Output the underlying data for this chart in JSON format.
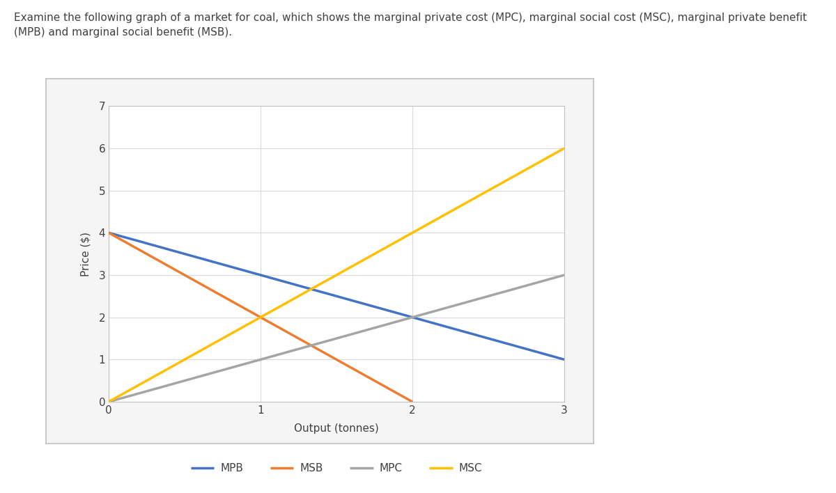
{
  "title_text": "Examine the following graph of a market for coal, which shows the marginal private cost (MPC), marginal social cost (MSC), marginal private benefit\n(MPB) and marginal social benefit (MSB).",
  "xlabel": "Output (tonnes)",
  "ylabel": "Price ($)",
  "xlim": [
    0,
    3
  ],
  "ylim": [
    0,
    7
  ],
  "xticks": [
    0,
    1,
    2,
    3
  ],
  "yticks": [
    0,
    1,
    2,
    3,
    4,
    5,
    6,
    7
  ],
  "lines": {
    "MPB": {
      "x": [
        0,
        3
      ],
      "y": [
        4,
        1
      ],
      "color": "#4472C4",
      "linewidth": 2.5
    },
    "MSB": {
      "x": [
        0,
        2
      ],
      "y": [
        4,
        0
      ],
      "color": "#ED7D31",
      "linewidth": 2.5
    },
    "MPC": {
      "x": [
        0,
        3
      ],
      "y": [
        0,
        3
      ],
      "color": "#A5A5A5",
      "linewidth": 2.5
    },
    "MSC": {
      "x": [
        0,
        3
      ],
      "y": [
        0,
        6
      ],
      "color": "#FFC000",
      "linewidth": 2.5
    }
  },
  "legend_order": [
    "MPB",
    "MSB",
    "MPC",
    "MSC"
  ],
  "figure_bg": "#FFFFFF",
  "plot_bg_color": "#FFFFFF",
  "outer_box_color": "#C0C0C0",
  "grid_color": "#D9D9D9",
  "title_fontsize": 11,
  "axis_label_fontsize": 11,
  "tick_fontsize": 11,
  "legend_fontsize": 11
}
